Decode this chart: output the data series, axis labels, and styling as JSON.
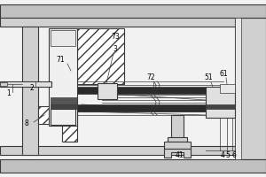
{
  "bg_color": "#f2f2f2",
  "line_color": "#3a3a3a",
  "white": "#ffffff",
  "dark": "#333333",
  "mid": "#aaaaaa",
  "light": "#cccccc",
  "outer_bar_color": "#c8c8c8",
  "inner_bar_color": "#d8d8d8"
}
